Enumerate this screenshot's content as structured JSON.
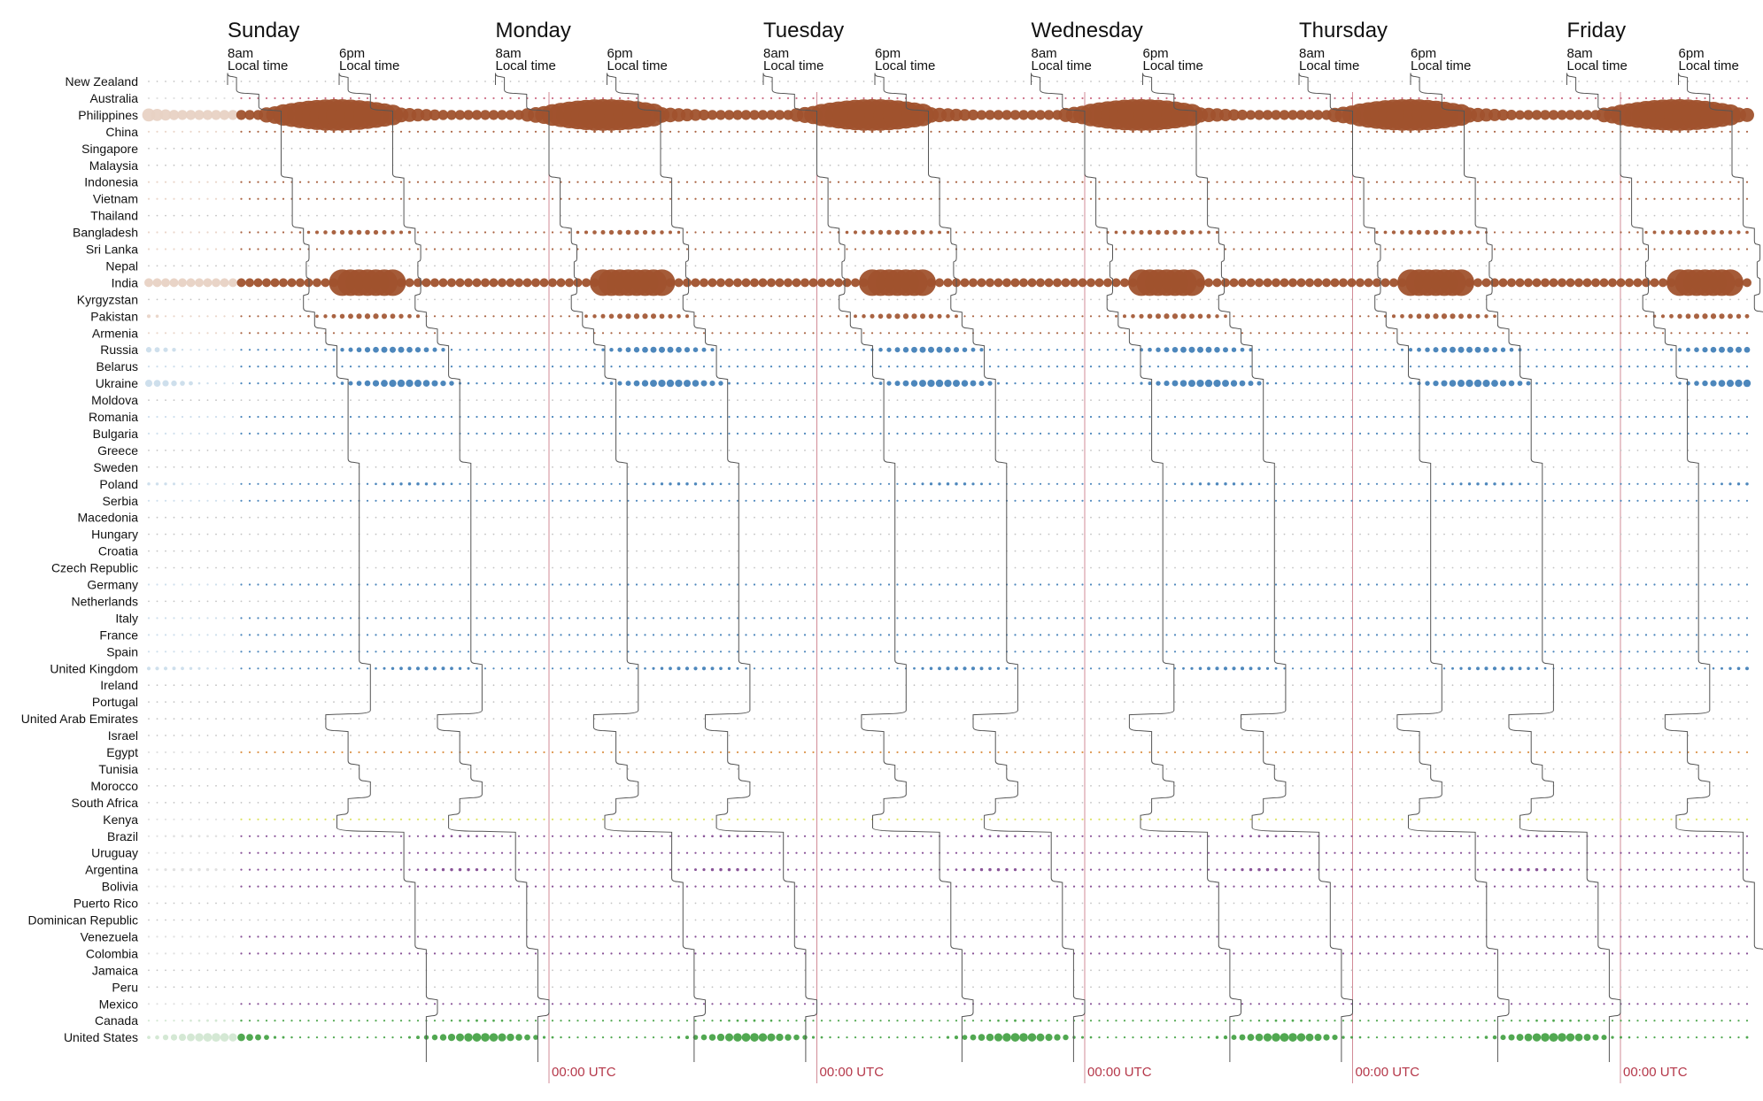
{
  "chart_data": {
    "type": "scatter",
    "title": "",
    "days": [
      "Sunday",
      "Monday",
      "Tuesday",
      "Wednesday",
      "Thursday",
      "Friday"
    ],
    "start_label": "8am",
    "end_label": "6pm",
    "local_time_label": "Local time",
    "utc_label": "00:00 UTC",
    "colors": {
      "asia": "#a0522d",
      "europe": "#3a7ab5",
      "mideast_africa": "#d98a3a",
      "africa_south": "#d8e04a",
      "latam": "#7b3f8c",
      "north_america": "#3e9e3e",
      "oceania": "#c8607a",
      "faded_asia": "#e8d2c4",
      "faded_europe": "#c9dcea",
      "faded_us": "#cfe6cf",
      "guide_line": "#555555",
      "utc_line": "#d28b97",
      "grid_dot": "#bbbbbb"
    },
    "countries": [
      {
        "name": "New Zealand",
        "region": "oceania",
        "offset": 12,
        "intensity": 0.05
      },
      {
        "name": "Australia",
        "region": "oceania",
        "offset": 10,
        "intensity": 0.15
      },
      {
        "name": "Philippines",
        "region": "asia",
        "offset": 8,
        "intensity": 1.0,
        "band": true
      },
      {
        "name": "China",
        "region": "asia",
        "offset": 8,
        "intensity": 0.2
      },
      {
        "name": "Singapore",
        "region": "asia",
        "offset": 8,
        "intensity": 0.05
      },
      {
        "name": "Malaysia",
        "region": "asia",
        "offset": 8,
        "intensity": 0.08
      },
      {
        "name": "Indonesia",
        "region": "asia",
        "offset": 7,
        "intensity": 0.15
      },
      {
        "name": "Vietnam",
        "region": "asia",
        "offset": 7,
        "intensity": 0.15
      },
      {
        "name": "Thailand",
        "region": "asia",
        "offset": 7,
        "intensity": 0.05
      },
      {
        "name": "Bangladesh",
        "region": "asia",
        "offset": 6,
        "intensity": 0.4
      },
      {
        "name": "Sri Lanka",
        "region": "asia",
        "offset": 5.5,
        "intensity": 0.15
      },
      {
        "name": "Nepal",
        "region": "asia",
        "offset": 5.75,
        "intensity": 0.05
      },
      {
        "name": "India",
        "region": "asia",
        "offset": 5.5,
        "intensity": 1.0,
        "band": true
      },
      {
        "name": "Kyrgyzstan",
        "region": "asia",
        "offset": 6,
        "intensity": 0.05
      },
      {
        "name": "Pakistan",
        "region": "asia",
        "offset": 5,
        "intensity": 0.45
      },
      {
        "name": "Armenia",
        "region": "asia",
        "offset": 4,
        "intensity": 0.1
      },
      {
        "name": "Russia",
        "region": "europe",
        "offset": 3,
        "intensity": 0.5
      },
      {
        "name": "Belarus",
        "region": "europe",
        "offset": 3,
        "intensity": 0.1
      },
      {
        "name": "Ukraine",
        "region": "europe",
        "offset": 2,
        "intensity": 0.6
      },
      {
        "name": "Moldova",
        "region": "europe",
        "offset": 2,
        "intensity": 0.05
      },
      {
        "name": "Romania",
        "region": "europe",
        "offset": 2,
        "intensity": 0.15
      },
      {
        "name": "Bulgaria",
        "region": "europe",
        "offset": 2,
        "intensity": 0.1
      },
      {
        "name": "Greece",
        "region": "europe",
        "offset": 2,
        "intensity": 0.05
      },
      {
        "name": "Sweden",
        "region": "europe",
        "offset": 1,
        "intensity": 0.05
      },
      {
        "name": "Poland",
        "region": "europe",
        "offset": 1,
        "intensity": 0.25
      },
      {
        "name": "Serbia",
        "region": "europe",
        "offset": 1,
        "intensity": 0.15
      },
      {
        "name": "Macedonia",
        "region": "europe",
        "offset": 1,
        "intensity": 0.08
      },
      {
        "name": "Hungary",
        "region": "europe",
        "offset": 1,
        "intensity": 0.08
      },
      {
        "name": "Croatia",
        "region": "europe",
        "offset": 1,
        "intensity": 0.05
      },
      {
        "name": "Czech Republic",
        "region": "europe",
        "offset": 1,
        "intensity": 0.05
      },
      {
        "name": "Germany",
        "region": "europe",
        "offset": 1,
        "intensity": 0.1
      },
      {
        "name": "Netherlands",
        "region": "europe",
        "offset": 1,
        "intensity": 0.05
      },
      {
        "name": "Italy",
        "region": "europe",
        "offset": 1,
        "intensity": 0.15
      },
      {
        "name": "France",
        "region": "europe",
        "offset": 1,
        "intensity": 0.12
      },
      {
        "name": "Spain",
        "region": "europe",
        "offset": 1,
        "intensity": 0.15
      },
      {
        "name": "United Kingdom",
        "region": "europe",
        "offset": 0,
        "intensity": 0.3
      },
      {
        "name": "Ireland",
        "region": "europe",
        "offset": 0,
        "intensity": 0.05
      },
      {
        "name": "Portugal",
        "region": "europe",
        "offset": 0,
        "intensity": 0.05
      },
      {
        "name": "United Arab Emirates",
        "region": "mideast_africa",
        "offset": 4,
        "intensity": 0.05
      },
      {
        "name": "Israel",
        "region": "mideast_africa",
        "offset": 2,
        "intensity": 0.05
      },
      {
        "name": "Egypt",
        "region": "mideast_africa",
        "offset": 2,
        "intensity": 0.15
      },
      {
        "name": "Tunisia",
        "region": "mideast_africa",
        "offset": 1,
        "intensity": 0.05
      },
      {
        "name": "Morocco",
        "region": "mideast_africa",
        "offset": 0,
        "intensity": 0.05
      },
      {
        "name": "South Africa",
        "region": "africa_south",
        "offset": 2,
        "intensity": 0.05
      },
      {
        "name": "Kenya",
        "region": "africa_south",
        "offset": 3,
        "intensity": 0.15
      },
      {
        "name": "Brazil",
        "region": "latam",
        "offset": -3,
        "intensity": 0.2
      },
      {
        "name": "Uruguay",
        "region": "latam",
        "offset": -3,
        "intensity": 0.1
      },
      {
        "name": "Argentina",
        "region": "latam",
        "offset": -3,
        "intensity": 0.25
      },
      {
        "name": "Bolivia",
        "region": "latam",
        "offset": -4,
        "intensity": 0.15
      },
      {
        "name": "Puerto Rico",
        "region": "latam",
        "offset": -4,
        "intensity": 0.05
      },
      {
        "name": "Dominican Republic",
        "region": "latam",
        "offset": -4,
        "intensity": 0.05
      },
      {
        "name": "Venezuela",
        "region": "latam",
        "offset": -4,
        "intensity": 0.15
      },
      {
        "name": "Colombia",
        "region": "latam",
        "offset": -5,
        "intensity": 0.15
      },
      {
        "name": "Jamaica",
        "region": "latam",
        "offset": -5,
        "intensity": 0.08
      },
      {
        "name": "Peru",
        "region": "latam",
        "offset": -5,
        "intensity": 0.05
      },
      {
        "name": "Mexico",
        "region": "latam",
        "offset": -6,
        "intensity": 0.15
      },
      {
        "name": "Canada",
        "region": "north_america",
        "offset": -5,
        "intensity": 0.2
      },
      {
        "name": "United States",
        "region": "north_america",
        "offset": -5,
        "intensity": 0.7
      }
    ]
  }
}
